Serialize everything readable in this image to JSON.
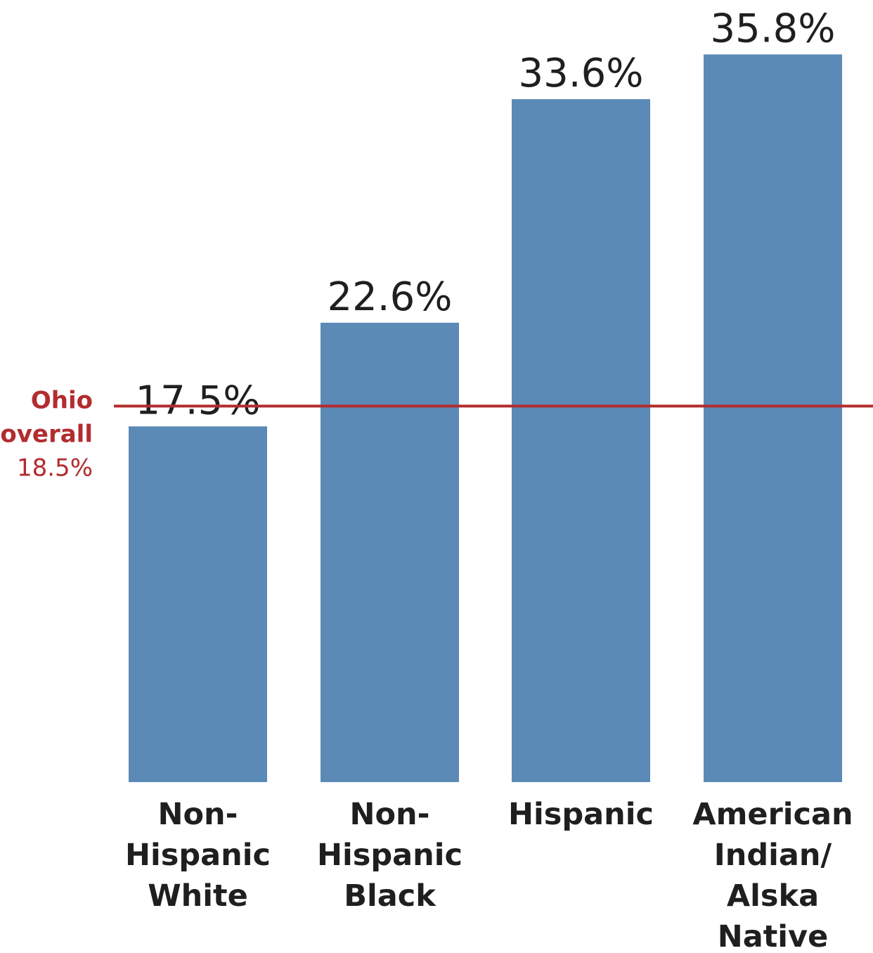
{
  "chart_data": {
    "type": "bar",
    "categories": [
      [
        "Non-",
        "Hispanic",
        "White"
      ],
      [
        "Non-",
        "Hispanic",
        "Black"
      ],
      [
        "Hispanic"
      ],
      [
        "American",
        "Indian/",
        "Alska",
        "Native"
      ]
    ],
    "values": [
      17.5,
      22.6,
      33.6,
      35.8
    ],
    "value_labels": [
      "17.5%",
      "22.6%",
      "33.6%",
      "35.8%"
    ],
    "ylim": [
      0,
      40
    ],
    "grid": false,
    "reference_line": {
      "label_lines": [
        "Ohio",
        "overall"
      ],
      "value": 18.5,
      "value_label": "18.5%"
    },
    "colors": {
      "bar": "#5b8ab6",
      "reference": "#b22c2f",
      "text": "#1f1f1f"
    }
  }
}
